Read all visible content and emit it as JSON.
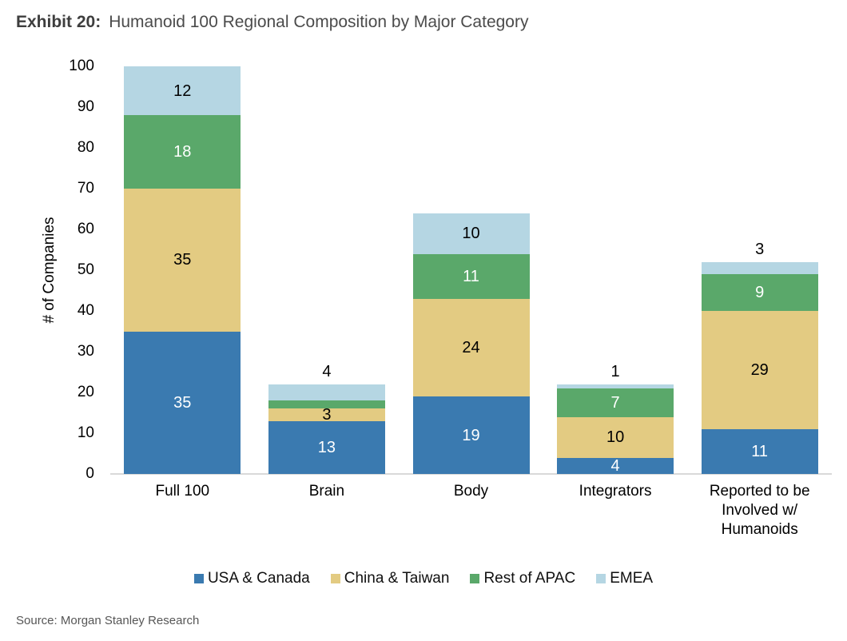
{
  "header": {
    "exhibit_label": "Exhibit 20:",
    "title": "Humanoid 100 Regional Composition by Major Category"
  },
  "footer": {
    "source": "Source: Morgan Stanley Research"
  },
  "chart_data": {
    "type": "bar",
    "subtype": "stacked",
    "title": "Humanoid 100 Regional Composition by Major Category",
    "xlabel": "",
    "ylabel": "# of Companies",
    "ylim": [
      0,
      100
    ],
    "yticks": [
      0,
      10,
      20,
      30,
      40,
      50,
      60,
      70,
      80,
      90,
      100
    ],
    "grid": false,
    "legend_position": "bottom",
    "axis_line_color": "#d9d9d9",
    "categories": [
      "Full 100",
      "Brain",
      "Body",
      "Integrators",
      "Reported to be Involved w/ Humanoids"
    ],
    "series": [
      {
        "name": "USA & Canada",
        "color": "#3a7ab0",
        "label_color": "#ffffff",
        "values": [
          35,
          13,
          19,
          4,
          11
        ]
      },
      {
        "name": "China & Taiwan",
        "color": "#e3cb82",
        "label_color": "#000000",
        "values": [
          35,
          3,
          24,
          10,
          29
        ]
      },
      {
        "name": "Rest of APAC",
        "color": "#5aa86a",
        "label_color": "#ffffff",
        "values": [
          18,
          2,
          11,
          7,
          9
        ]
      },
      {
        "name": "EMEA",
        "color": "#b5d6e3",
        "label_color": "#000000",
        "values": [
          12,
          4,
          10,
          1,
          3
        ]
      }
    ],
    "totals": [
      100,
      22,
      64,
      22,
      52
    ],
    "label_overrides": [
      {
        "category_index": 1,
        "series_index": 2,
        "center_value": 20
      },
      {
        "category_index": 1,
        "series_index": 3,
        "outside": true
      },
      {
        "category_index": 3,
        "series_index": 3,
        "outside": true
      },
      {
        "category_index": 4,
        "series_index": 3,
        "outside": true
      }
    ]
  }
}
